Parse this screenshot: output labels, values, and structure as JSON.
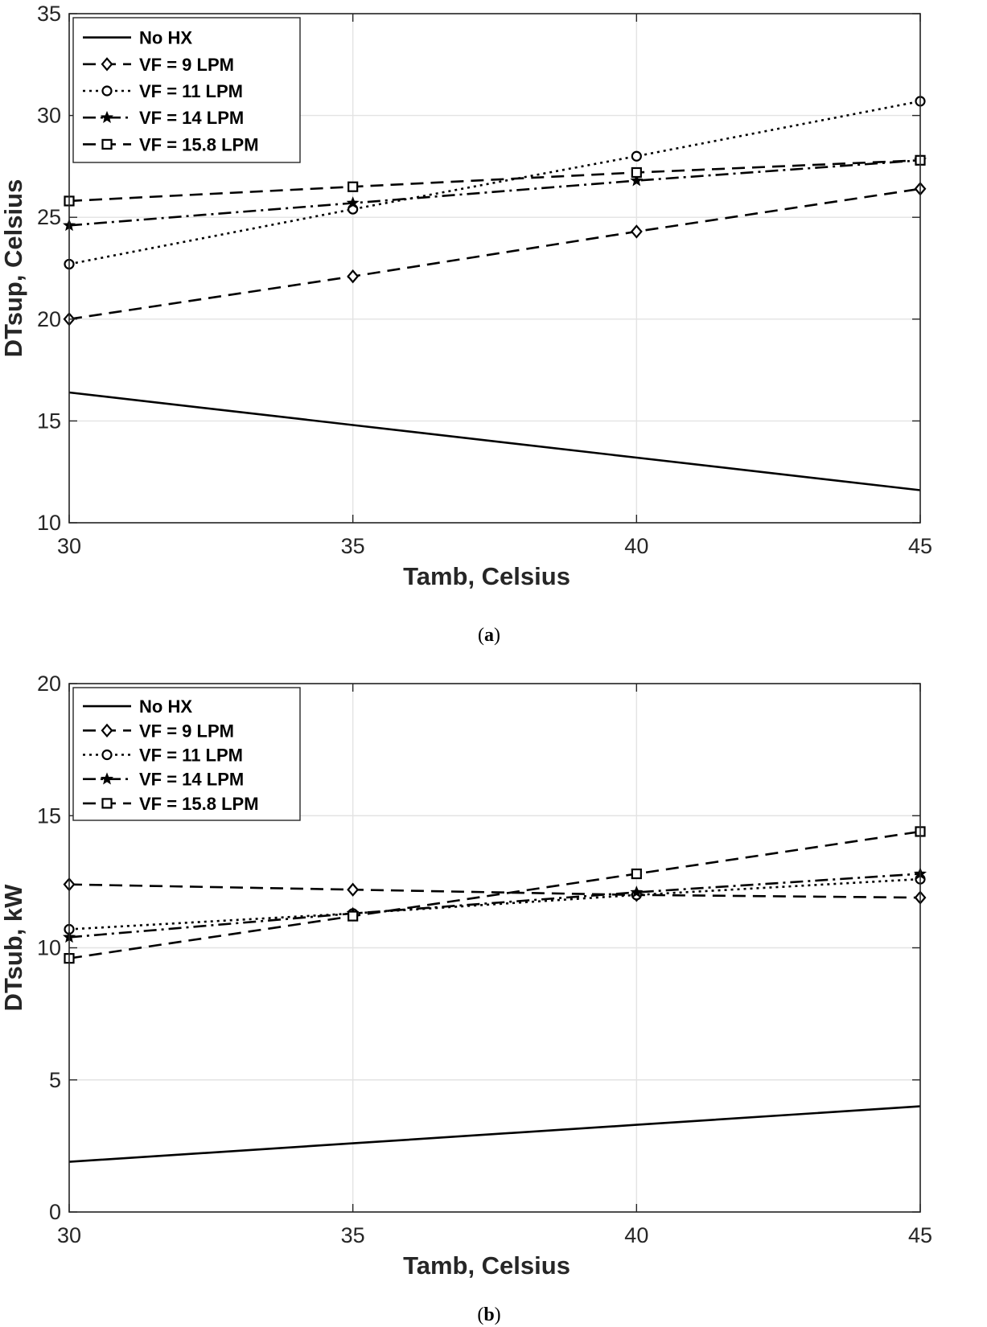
{
  "chart_data": [
    {
      "type": "line",
      "caption_letter": "a",
      "xlabel": "Tamb, Celsius",
      "ylabel": "DTsup, Celsius",
      "xlim": [
        30,
        45
      ],
      "ylim": [
        10,
        35
      ],
      "xticks": [
        30,
        35,
        40,
        45
      ],
      "yticks": [
        10,
        15,
        20,
        25,
        30,
        35
      ],
      "grid": true,
      "legend_position": "top-left",
      "x": [
        30,
        35,
        40,
        45
      ],
      "series": [
        {
          "name": "No HX",
          "dash": "solid",
          "marker": "none",
          "values": [
            16.4,
            14.8,
            13.2,
            11.6
          ]
        },
        {
          "name": "VF = 9 LPM",
          "dash": "dash",
          "marker": "diamond",
          "values": [
            20.0,
            22.1,
            24.3,
            26.4
          ]
        },
        {
          "name": "VF = 11 LPM",
          "dash": "dot",
          "marker": "circle",
          "values": [
            22.7,
            25.4,
            28.0,
            30.7
          ]
        },
        {
          "name": "VF = 14 LPM",
          "dash": "dashdot",
          "marker": "star",
          "values": [
            24.6,
            25.7,
            26.8,
            27.8
          ]
        },
        {
          "name": "VF = 15.8 LPM",
          "dash": "dash",
          "marker": "square",
          "values": [
            25.8,
            26.5,
            27.2,
            27.8
          ]
        }
      ]
    },
    {
      "type": "line",
      "caption_letter": "b",
      "xlabel": "Tamb, Celsius",
      "ylabel": "DTsub, kW",
      "xlim": [
        30,
        45
      ],
      "ylim": [
        0,
        20
      ],
      "xticks": [
        30,
        35,
        40,
        45
      ],
      "yticks": [
        0,
        5,
        10,
        15,
        20
      ],
      "grid": true,
      "legend_position": "top-left",
      "x": [
        30,
        35,
        40,
        45
      ],
      "series": [
        {
          "name": "No HX",
          "dash": "solid",
          "marker": "none",
          "values": [
            1.9,
            2.6,
            3.3,
            4.0
          ]
        },
        {
          "name": "VF = 9 LPM",
          "dash": "dash",
          "marker": "diamond",
          "values": [
            12.4,
            12.2,
            12.0,
            11.9
          ]
        },
        {
          "name": "VF = 11 LPM",
          "dash": "dot",
          "marker": "circle",
          "values": [
            10.7,
            11.3,
            12.0,
            12.6
          ]
        },
        {
          "name": "VF = 14 LPM",
          "dash": "dashdot",
          "marker": "star",
          "values": [
            10.4,
            11.3,
            12.1,
            12.8
          ]
        },
        {
          "name": "VF = 15.8 LPM",
          "dash": "dash",
          "marker": "square",
          "values": [
            9.6,
            11.2,
            12.8,
            14.4
          ]
        }
      ]
    }
  ]
}
